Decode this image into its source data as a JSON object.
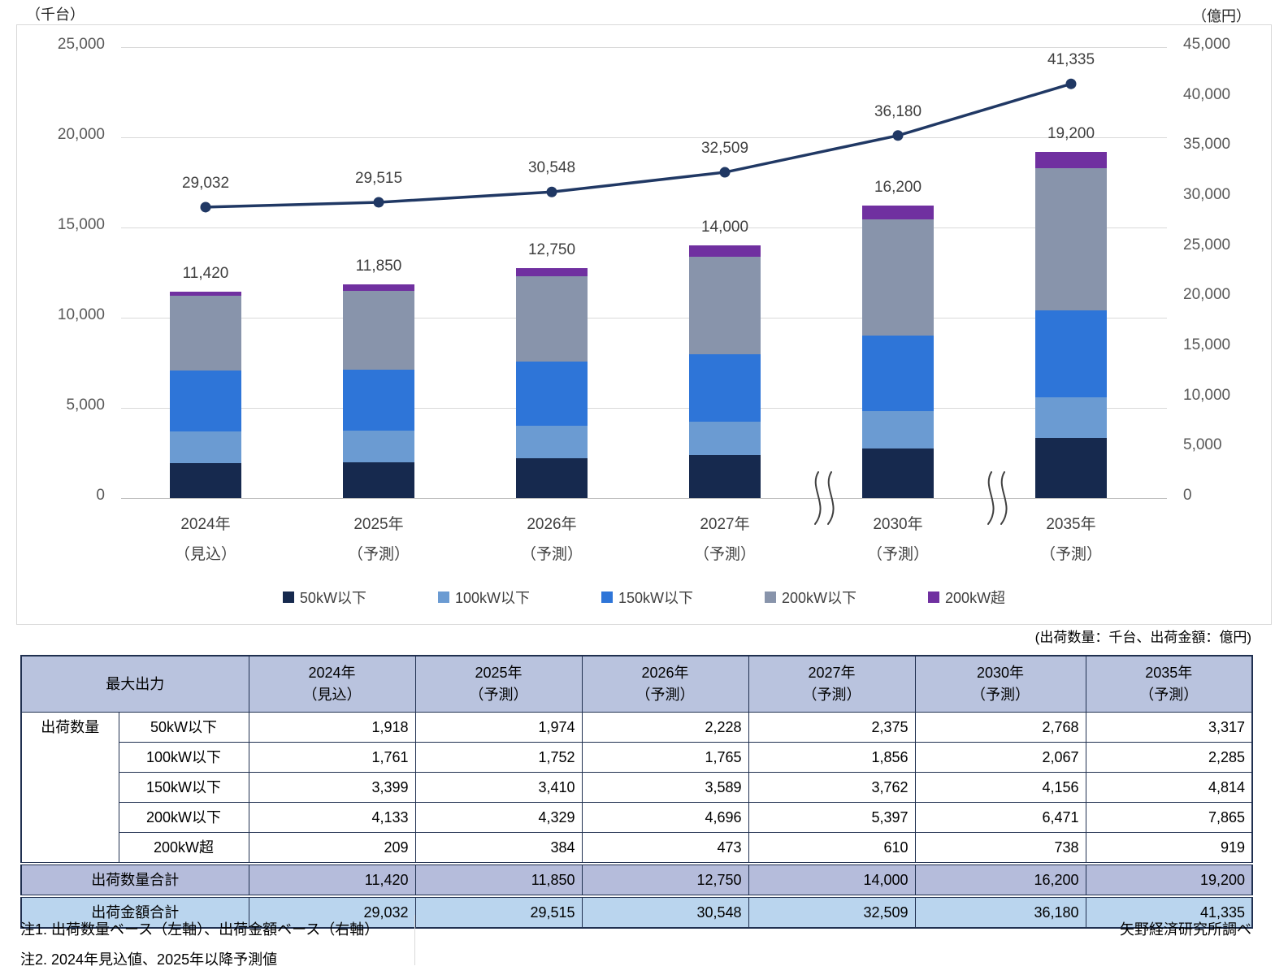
{
  "chart_data": {
    "type": "stacked-bar-with-line",
    "categories": [
      {
        "year": "2024年",
        "note": "（見込）"
      },
      {
        "year": "2025年",
        "note": "（予測）"
      },
      {
        "year": "2026年",
        "note": "（予測）"
      },
      {
        "year": "2027年",
        "note": "（予測）"
      },
      {
        "year": "2030年",
        "note": "（予測）"
      },
      {
        "year": "2035年",
        "note": "（予測）"
      }
    ],
    "series": [
      {
        "name": "50kW以下",
        "color": "#16294E",
        "values": [
          1918,
          1974,
          2228,
          2375,
          2768,
          3317
        ]
      },
      {
        "name": "100kW以下",
        "color": "#6B9BD2",
        "values": [
          1761,
          1752,
          1765,
          1856,
          2067,
          2285
        ]
      },
      {
        "name": "150kW以下",
        "color": "#2E75D8",
        "values": [
          3399,
          3410,
          3589,
          3762,
          4156,
          4814
        ]
      },
      {
        "name": "200kW以下",
        "color": "#8894AB",
        "values": [
          4133,
          4329,
          4696,
          5397,
          6471,
          7865
        ]
      },
      {
        "name": "200kW超",
        "color": "#7030A0",
        "values": [
          209,
          384,
          473,
          610,
          738,
          919
        ]
      }
    ],
    "bar_totals": [
      "11,420",
      "11,850",
      "12,750",
      "14,000",
      "16,200",
      "19,200"
    ],
    "line": {
      "name": "出荷金額合計",
      "color": "#203864",
      "values": [
        29032,
        29515,
        30548,
        32509,
        36180,
        41335
      ],
      "labels": [
        "29,032",
        "29,515",
        "30,548",
        "32,509",
        "36,180",
        "41,335"
      ]
    },
    "left_axis": {
      "title": "（千台）",
      "min": 0,
      "max": 25000,
      "step": 5000
    },
    "right_axis": {
      "title": "（億円）",
      "min": 0,
      "max": 45000,
      "step": 5000
    },
    "legend": [
      "50kW以下",
      "100kW以下",
      "150kW以下",
      "200kW以下",
      "200kW超"
    ],
    "axis_breaks_between": [
      "2027年-2030年",
      "2030年-2035年"
    ],
    "grid": "horizontal"
  },
  "table": {
    "units_caption": "(出荷数量：千台、出荷金額：億円)",
    "corner_header": "最大出力",
    "col_headers": [
      {
        "year": "2024年",
        "note": "（見込）"
      },
      {
        "year": "2025年",
        "note": "（予測）"
      },
      {
        "year": "2026年",
        "note": "（予測）"
      },
      {
        "year": "2027年",
        "note": "（予測）"
      },
      {
        "year": "2030年",
        "note": "（予測）"
      },
      {
        "year": "2035年",
        "note": "（予測）"
      }
    ],
    "row_group_label": "出荷数量",
    "rows": [
      {
        "label": "50kW以下",
        "values": [
          "1,918",
          "1,974",
          "2,228",
          "2,375",
          "2,768",
          "3,317"
        ]
      },
      {
        "label": "100kW以下",
        "values": [
          "1,761",
          "1,752",
          "1,765",
          "1,856",
          "2,067",
          "2,285"
        ]
      },
      {
        "label": "150kW以下",
        "values": [
          "3,399",
          "3,410",
          "3,589",
          "3,762",
          "4,156",
          "4,814"
        ]
      },
      {
        "label": "200kW以下",
        "values": [
          "4,133",
          "4,329",
          "4,696",
          "5,397",
          "6,471",
          "7,865"
        ]
      },
      {
        "label": "200kW超",
        "values": [
          "209",
          "384",
          "473",
          "610",
          "738",
          "919"
        ]
      }
    ],
    "total_rows": [
      {
        "label": "出荷数量合計",
        "values": [
          "11,420",
          "11,850",
          "12,750",
          "14,000",
          "16,200",
          "19,200"
        ]
      },
      {
        "label": "出荷金額合計",
        "values": [
          "29,032",
          "29,515",
          "30,548",
          "32,509",
          "36,180",
          "41,335"
        ]
      }
    ]
  },
  "notes": {
    "note1": "注1. 出荷数量ベース（左軸）、出荷金額ベース（右軸）",
    "note2": "注2. 2024年見込値、2025年以降予測値"
  },
  "source": "矢野経済研究所調べ",
  "colors": {
    "gridline": "#D9D9D9",
    "axis_line": "#BFBFBF",
    "header_bg": "#B9C3DE",
    "total_qty_bg": "#B5BCDB",
    "total_amt_bg": "#BAD5EE",
    "table_border": "#203050"
  }
}
